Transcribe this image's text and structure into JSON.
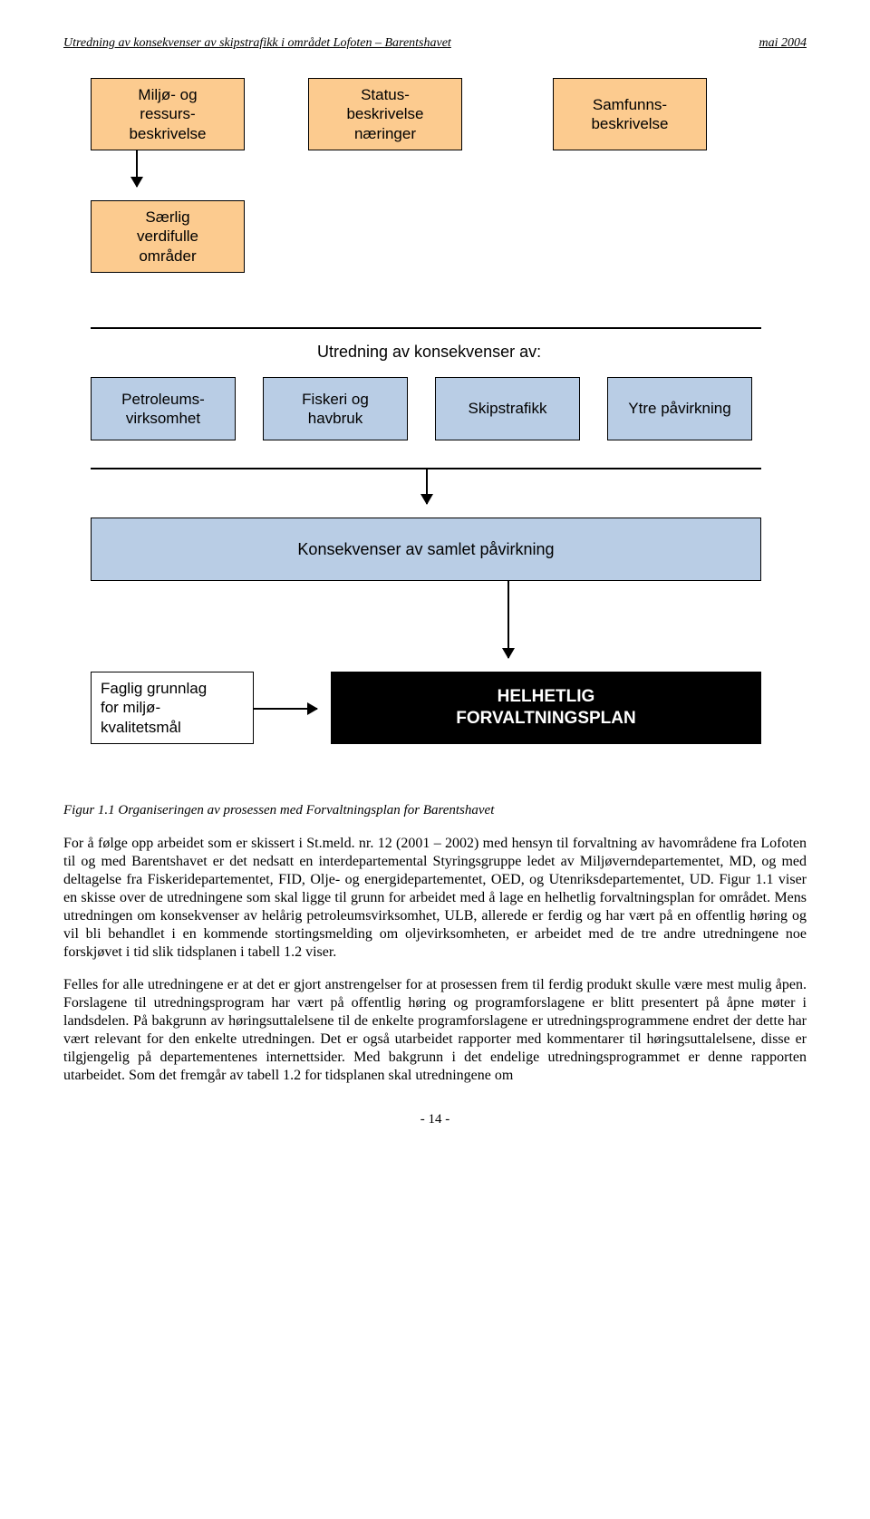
{
  "header": {
    "title_left": "Utredning av konsekvenser av skipstrafikk i området Lofoten – Barentshavet",
    "title_right": "mai 2004"
  },
  "diagram": {
    "colors": {
      "orange": "#fccb8f",
      "blue": "#b9cde5",
      "black": "#000000",
      "white": "#ffffff",
      "text_white": "#ffffff",
      "border": "#000000"
    },
    "row1": {
      "b1": "Miljø- og\nressurs-\nbeskrivelse",
      "b2": "Status-\nbeskrivelse\nnæringer",
      "b3": "Samfunns-\nbeskrivelse"
    },
    "row2": {
      "b1": "Særlig\nverdifulle\nområder"
    },
    "section_label": "Utredning av konsekvenser av:",
    "row3": {
      "b1": "Petroleums-\nvirksomhet",
      "b2": "Fiskeri og\nhavbruk",
      "b3": "Skipstrafikk",
      "b4": "Ytre påvirkning"
    },
    "row4": {
      "b1": "Konsekvenser av samlet påvirkning"
    },
    "row5": {
      "left": "Faglig grunnlag\nfor miljø-\nkvalitetsmål",
      "right": "HELHETLIG\nFORVALTNINGSPLAN"
    }
  },
  "caption": "Figur 1.1 Organiseringen av prosessen med Forvaltningsplan for Barentshavet",
  "paragraphs": {
    "p1": "For å følge opp arbeidet som er skissert i St.meld. nr. 12 (2001 – 2002) med hensyn til forvaltning av havområdene fra Lofoten til og med Barentshavet er det nedsatt en interdepartemental Styringsgruppe ledet av Miljøverndepartementet, MD, og med deltagelse fra Fiskeridepartementet, FID, Olje- og energidepartementet, OED, og Utenriksdepartementet, UD. Figur 1.1 viser en skisse over de utredningene som skal ligge til grunn for arbeidet med å lage en helhetlig forvaltningsplan for området. Mens utredningen om konsekvenser av helårig petroleumsvirksomhet, ULB, allerede er ferdig og har vært på en offentlig høring og vil bli behandlet i en kommende stortingsmelding om oljevirksomheten, er arbeidet med de tre andre utredningene noe forskjøvet i tid slik tidsplanen i tabell 1.2 viser.",
    "p2": "Felles for alle utredningene er at det er gjort anstrengelser for at prosessen frem til ferdig produkt skulle være mest mulig åpen. Forslagene til utredningsprogram har vært på offentlig høring og programforslagene er blitt presentert på åpne møter i landsdelen. På bakgrunn av høringsuttalelsene til de enkelte programforslagene er utredningsprogrammene endret der dette har vært relevant for den enkelte utredningen. Det er også utarbeidet rapporter med kommentarer til høringsuttalelsene, disse er tilgjengelig på departementenes internettsider. Med bakgrunn i det endelige utredningsprogrammet er denne rapporten utarbeidet. Som det fremgår av tabell 1.2 for tidsplanen skal utredningene om"
  },
  "footer": "- 14 -"
}
